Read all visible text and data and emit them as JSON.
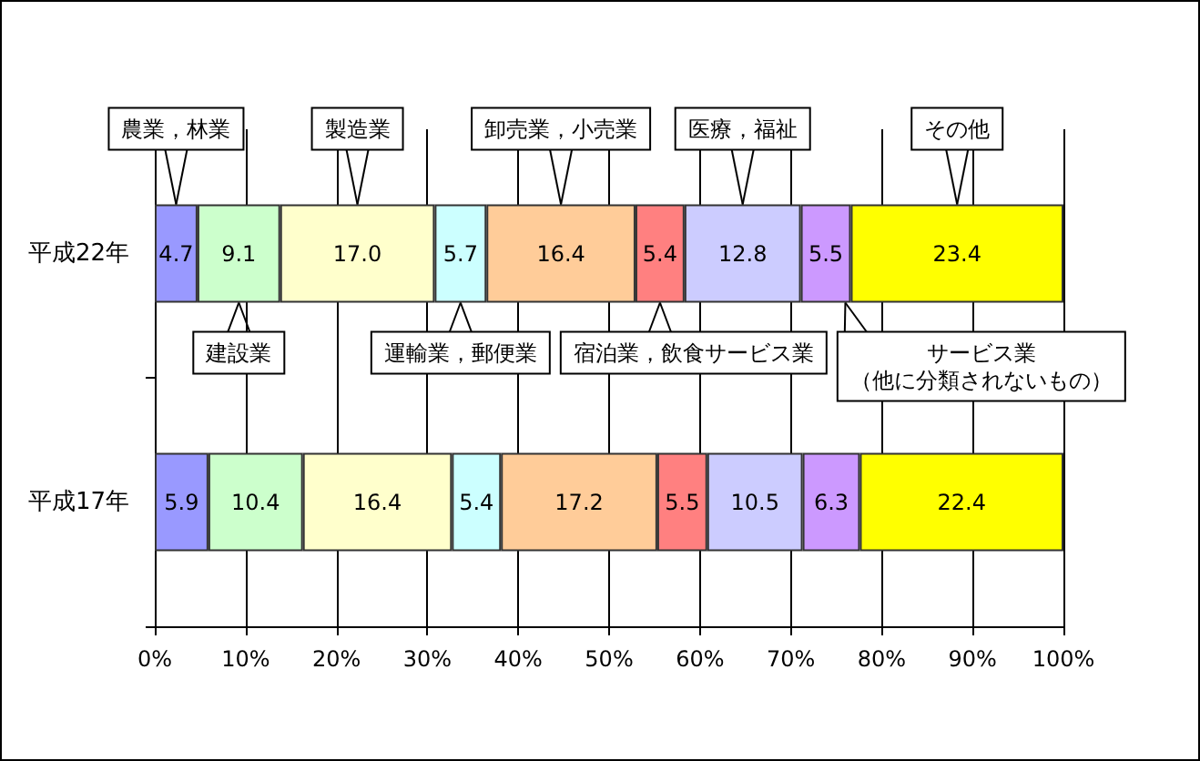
{
  "chart_data": {
    "type": "bar",
    "orientation": "horizontal",
    "stacked": true,
    "categories": [
      "平成22年",
      "平成17年"
    ],
    "series": [
      {
        "name": "農業，林業",
        "color": "#9999ff",
        "values": [
          4.7,
          5.9
        ],
        "value_labels": [
          "4.7",
          "5.9"
        ]
      },
      {
        "name": "建設業",
        "color": "#ccffcc",
        "values": [
          9.1,
          10.4
        ],
        "value_labels": [
          "9.1",
          "10.4"
        ]
      },
      {
        "name": "製造業",
        "color": "#ffffcc",
        "values": [
          17.0,
          16.4
        ],
        "value_labels": [
          "17.0",
          "16.4"
        ]
      },
      {
        "name": "運輸業，郵便業",
        "color": "#ccffff",
        "values": [
          5.7,
          5.4
        ],
        "value_labels": [
          "5.7",
          "5.4"
        ]
      },
      {
        "name": "卸売業，小売業",
        "color": "#ffcc99",
        "values": [
          16.4,
          17.2
        ],
        "value_labels": [
          "16.4",
          "17.2"
        ]
      },
      {
        "name": "宿泊業，飲食サービス業",
        "color": "#ff8080",
        "values": [
          5.4,
          5.5
        ],
        "value_labels": [
          "5.4",
          "5.5"
        ]
      },
      {
        "name": "医療，福祉",
        "color": "#ccccff",
        "values": [
          12.8,
          10.5
        ],
        "value_labels": [
          "12.8",
          "10.5"
        ]
      },
      {
        "name": "サービス業（他に分類されないもの）",
        "color": "#cc99ff",
        "values": [
          5.5,
          6.3
        ],
        "value_labels": [
          "5.5",
          "6.3"
        ]
      },
      {
        "name": "その他",
        "color": "#ffff00",
        "values": [
          23.4,
          22.4
        ],
        "value_labels": [
          "23.4",
          "22.4"
        ]
      }
    ],
    "xlim": [
      0,
      100
    ],
    "xticks": [
      {
        "value": 0,
        "label": "0%"
      },
      {
        "value": 10,
        "label": "10%"
      },
      {
        "value": 20,
        "label": "20%"
      },
      {
        "value": 30,
        "label": "30%"
      },
      {
        "value": 40,
        "label": "40%"
      },
      {
        "value": 50,
        "label": "50%"
      },
      {
        "value": 60,
        "label": "60%"
      },
      {
        "value": 70,
        "label": "70%"
      },
      {
        "value": 80,
        "label": "80%"
      },
      {
        "value": 90,
        "label": "90%"
      },
      {
        "value": 100,
        "label": "100%"
      }
    ],
    "grid": "x"
  }
}
